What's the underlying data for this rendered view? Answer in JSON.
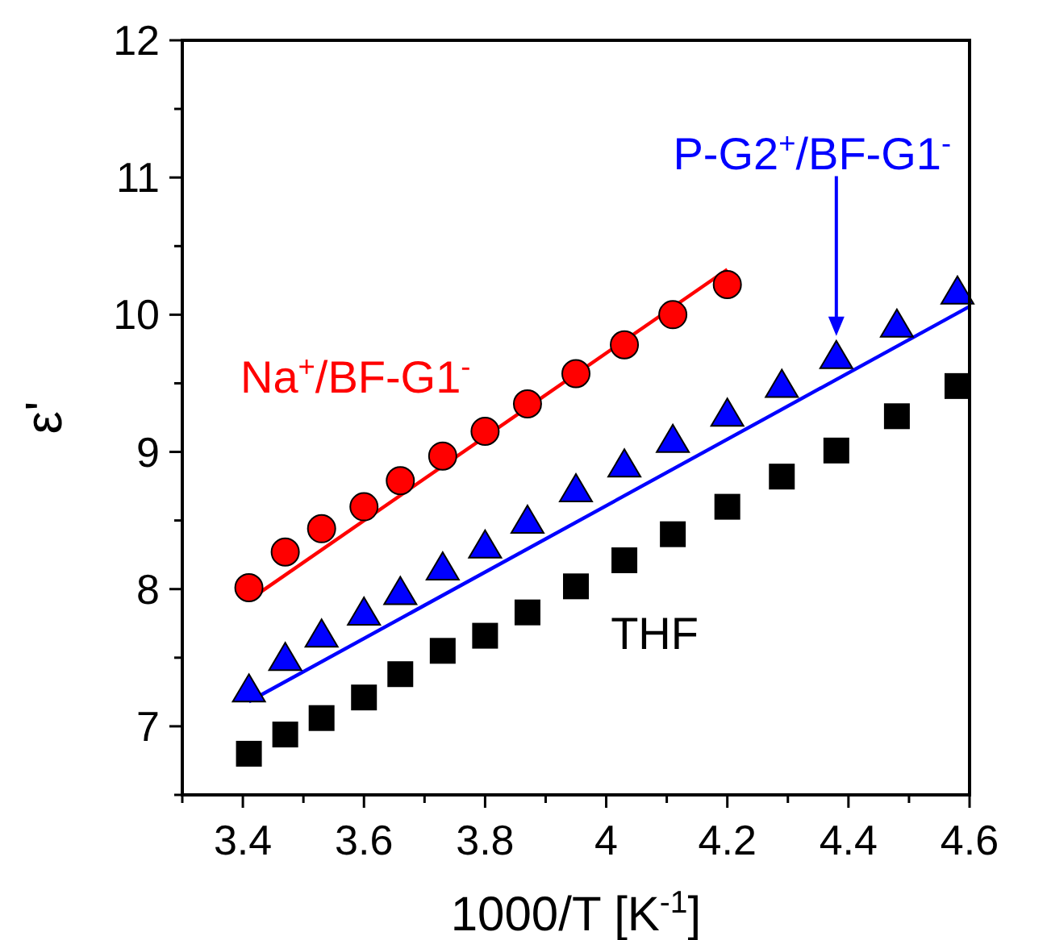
{
  "chart_data": {
    "type": "scatter",
    "xlabel": "1000/T [K$^{-1}$]",
    "ylabel": "ε'",
    "xlim": [
      3.3,
      4.6
    ],
    "ylim": [
      6.5,
      12
    ],
    "xticks": [
      {
        "value": 3.3,
        "label": null
      },
      3.4,
      {
        "value": 3.5,
        "label": null
      },
      3.6,
      {
        "value": 3.7,
        "label": null
      },
      3.8,
      {
        "value": 3.9,
        "label": null
      },
      4.0,
      {
        "value": 4.1,
        "label": null
      },
      4.2,
      {
        "value": 4.3,
        "label": null
      },
      4.4,
      {
        "value": 4.5,
        "label": null
      },
      4.6
    ],
    "yticks": [
      {
        "value": 6.5,
        "label": null
      },
      7,
      {
        "value": 7.5,
        "label": null
      },
      8,
      {
        "value": 8.5,
        "label": null
      },
      9,
      {
        "value": 9.5,
        "label": null
      },
      10,
      {
        "value": 10.5,
        "label": null
      },
      11,
      {
        "value": 11.5,
        "label": null
      },
      12
    ],
    "grid": false,
    "series": [
      {
        "marker": "circle",
        "color": "#ff0000",
        "x": [
          3.41,
          3.47,
          3.53,
          3.6,
          3.66,
          3.73,
          3.8,
          3.87,
          3.95,
          4.03,
          4.11,
          4.2
        ],
        "values": [
          8.01,
          8.27,
          8.44,
          8.6,
          8.79,
          8.97,
          9.15,
          9.35,
          9.57,
          9.78,
          10.0,
          10.22
        ]
      },
      {
        "marker": "triangle",
        "color": "#0000ff",
        "x": [
          3.41,
          3.47,
          3.53,
          3.6,
          3.66,
          3.73,
          3.8,
          3.87,
          3.95,
          4.03,
          4.11,
          4.2,
          4.29,
          4.38,
          4.48,
          4.58
        ],
        "values": [
          7.25,
          7.48,
          7.65,
          7.81,
          7.96,
          8.14,
          8.3,
          8.48,
          8.71,
          8.89,
          9.07,
          9.26,
          9.47,
          9.68,
          9.91,
          10.15
        ]
      },
      {
        "marker": "square",
        "color": "#000000",
        "x": [
          3.41,
          3.47,
          3.53,
          3.6,
          3.66,
          3.73,
          3.8,
          3.87,
          3.95,
          4.03,
          4.11,
          4.2,
          4.29,
          4.38,
          4.48,
          4.58
        ],
        "values": [
          6.8,
          6.94,
          7.06,
          7.21,
          7.38,
          7.55,
          7.66,
          7.83,
          8.02,
          8.21,
          8.4,
          8.6,
          8.82,
          9.01,
          9.26,
          9.48
        ]
      },
      {
        "type": "line",
        "marker": "none",
        "line_style": "solid",
        "color": "#ff0000",
        "x": [
          3.41,
          4.2
        ],
        "values": [
          7.92,
          10.33
        ]
      },
      {
        "type": "line",
        "marker": "none",
        "line_style": "solid",
        "color": "#0000ff",
        "x": [
          3.41,
          4.6
        ],
        "values": [
          7.18,
          10.06
        ]
      }
    ],
    "annotations": [
      "Na$^{+}$/BF-G1$^{-}$",
      "P-G2$^{+}$/BF-G1$^{-}$",
      "THF"
    ]
  }
}
